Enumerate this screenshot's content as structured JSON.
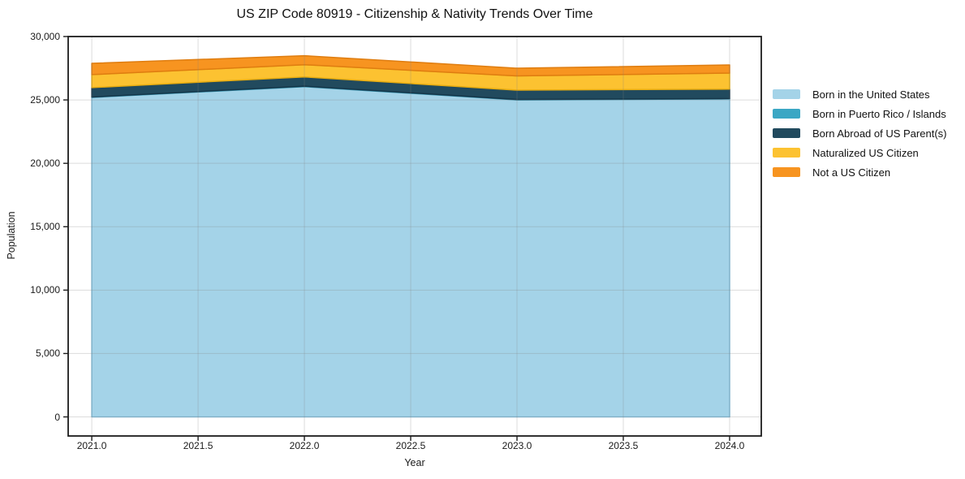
{
  "title": "US ZIP Code 80919 - Citizenship & Nativity Trends Over Time",
  "axes": {
    "xlabel": "Year",
    "ylabel": "Population"
  },
  "colors": {
    "background": "#ffffff",
    "spine": "#1c1c1c",
    "grid": "rgba(130,130,130,0.28)",
    "tick": "#1c1c1c",
    "text": "#1a1a1a"
  },
  "chart_data": {
    "type": "area",
    "stacked": true,
    "title": "US ZIP Code 80919 - Citizenship & Nativity Trends Over Time",
    "xlabel": "Year",
    "ylabel": "Population",
    "x": [
      2021,
      2022,
      2023,
      2024
    ],
    "series": [
      {
        "name": "Born in the United States",
        "color": "#a4d3e8",
        "edge": "#82bedb",
        "values": [
          25200,
          26050,
          25000,
          25080
        ]
      },
      {
        "name": "Born in Puerto Rico / Islands",
        "color": "#3ba7c4",
        "edge": "#2f8ba6",
        "values": [
          30,
          40,
          35,
          30
        ]
      },
      {
        "name": "Born Abroad of US Parent(s)",
        "color": "#214a5e",
        "edge": "#16374a",
        "values": [
          740,
          730,
          740,
          740
        ]
      },
      {
        "name": "Naturalized US Citizen",
        "color": "#fcc231",
        "edge": "#e9ad10",
        "values": [
          1030,
          960,
          1120,
          1270
        ]
      },
      {
        "name": "Not a US Citizen",
        "color": "#f79420",
        "edge": "#df7d10",
        "values": [
          890,
          710,
          610,
          640
        ]
      }
    ],
    "totals": [
      27890,
      28490,
      27505,
      27760
    ],
    "xlim": [
      2020.889,
      2024.149
    ],
    "ylim": [
      -1504,
      30000
    ],
    "grid": true,
    "legend_position": "right",
    "xticks": [
      {
        "value": 2021.0,
        "label": "2021.0"
      },
      {
        "value": 2021.5,
        "label": "2021.5"
      },
      {
        "value": 2022.0,
        "label": "2022.0"
      },
      {
        "value": 2022.5,
        "label": "2022.5"
      },
      {
        "value": 2023.0,
        "label": "2023.0"
      },
      {
        "value": 2023.5,
        "label": "2023.5"
      },
      {
        "value": 2024.0,
        "label": "2024.0"
      }
    ],
    "yticks": [
      {
        "value": 0,
        "label": "0"
      },
      {
        "value": 5000,
        "label": "5,000"
      },
      {
        "value": 10000,
        "label": "10,000"
      },
      {
        "value": 15000,
        "label": "15,000"
      },
      {
        "value": 20000,
        "label": "20,000"
      },
      {
        "value": 25000,
        "label": "25,000"
      },
      {
        "value": 30000,
        "label": "30,000"
      }
    ]
  }
}
